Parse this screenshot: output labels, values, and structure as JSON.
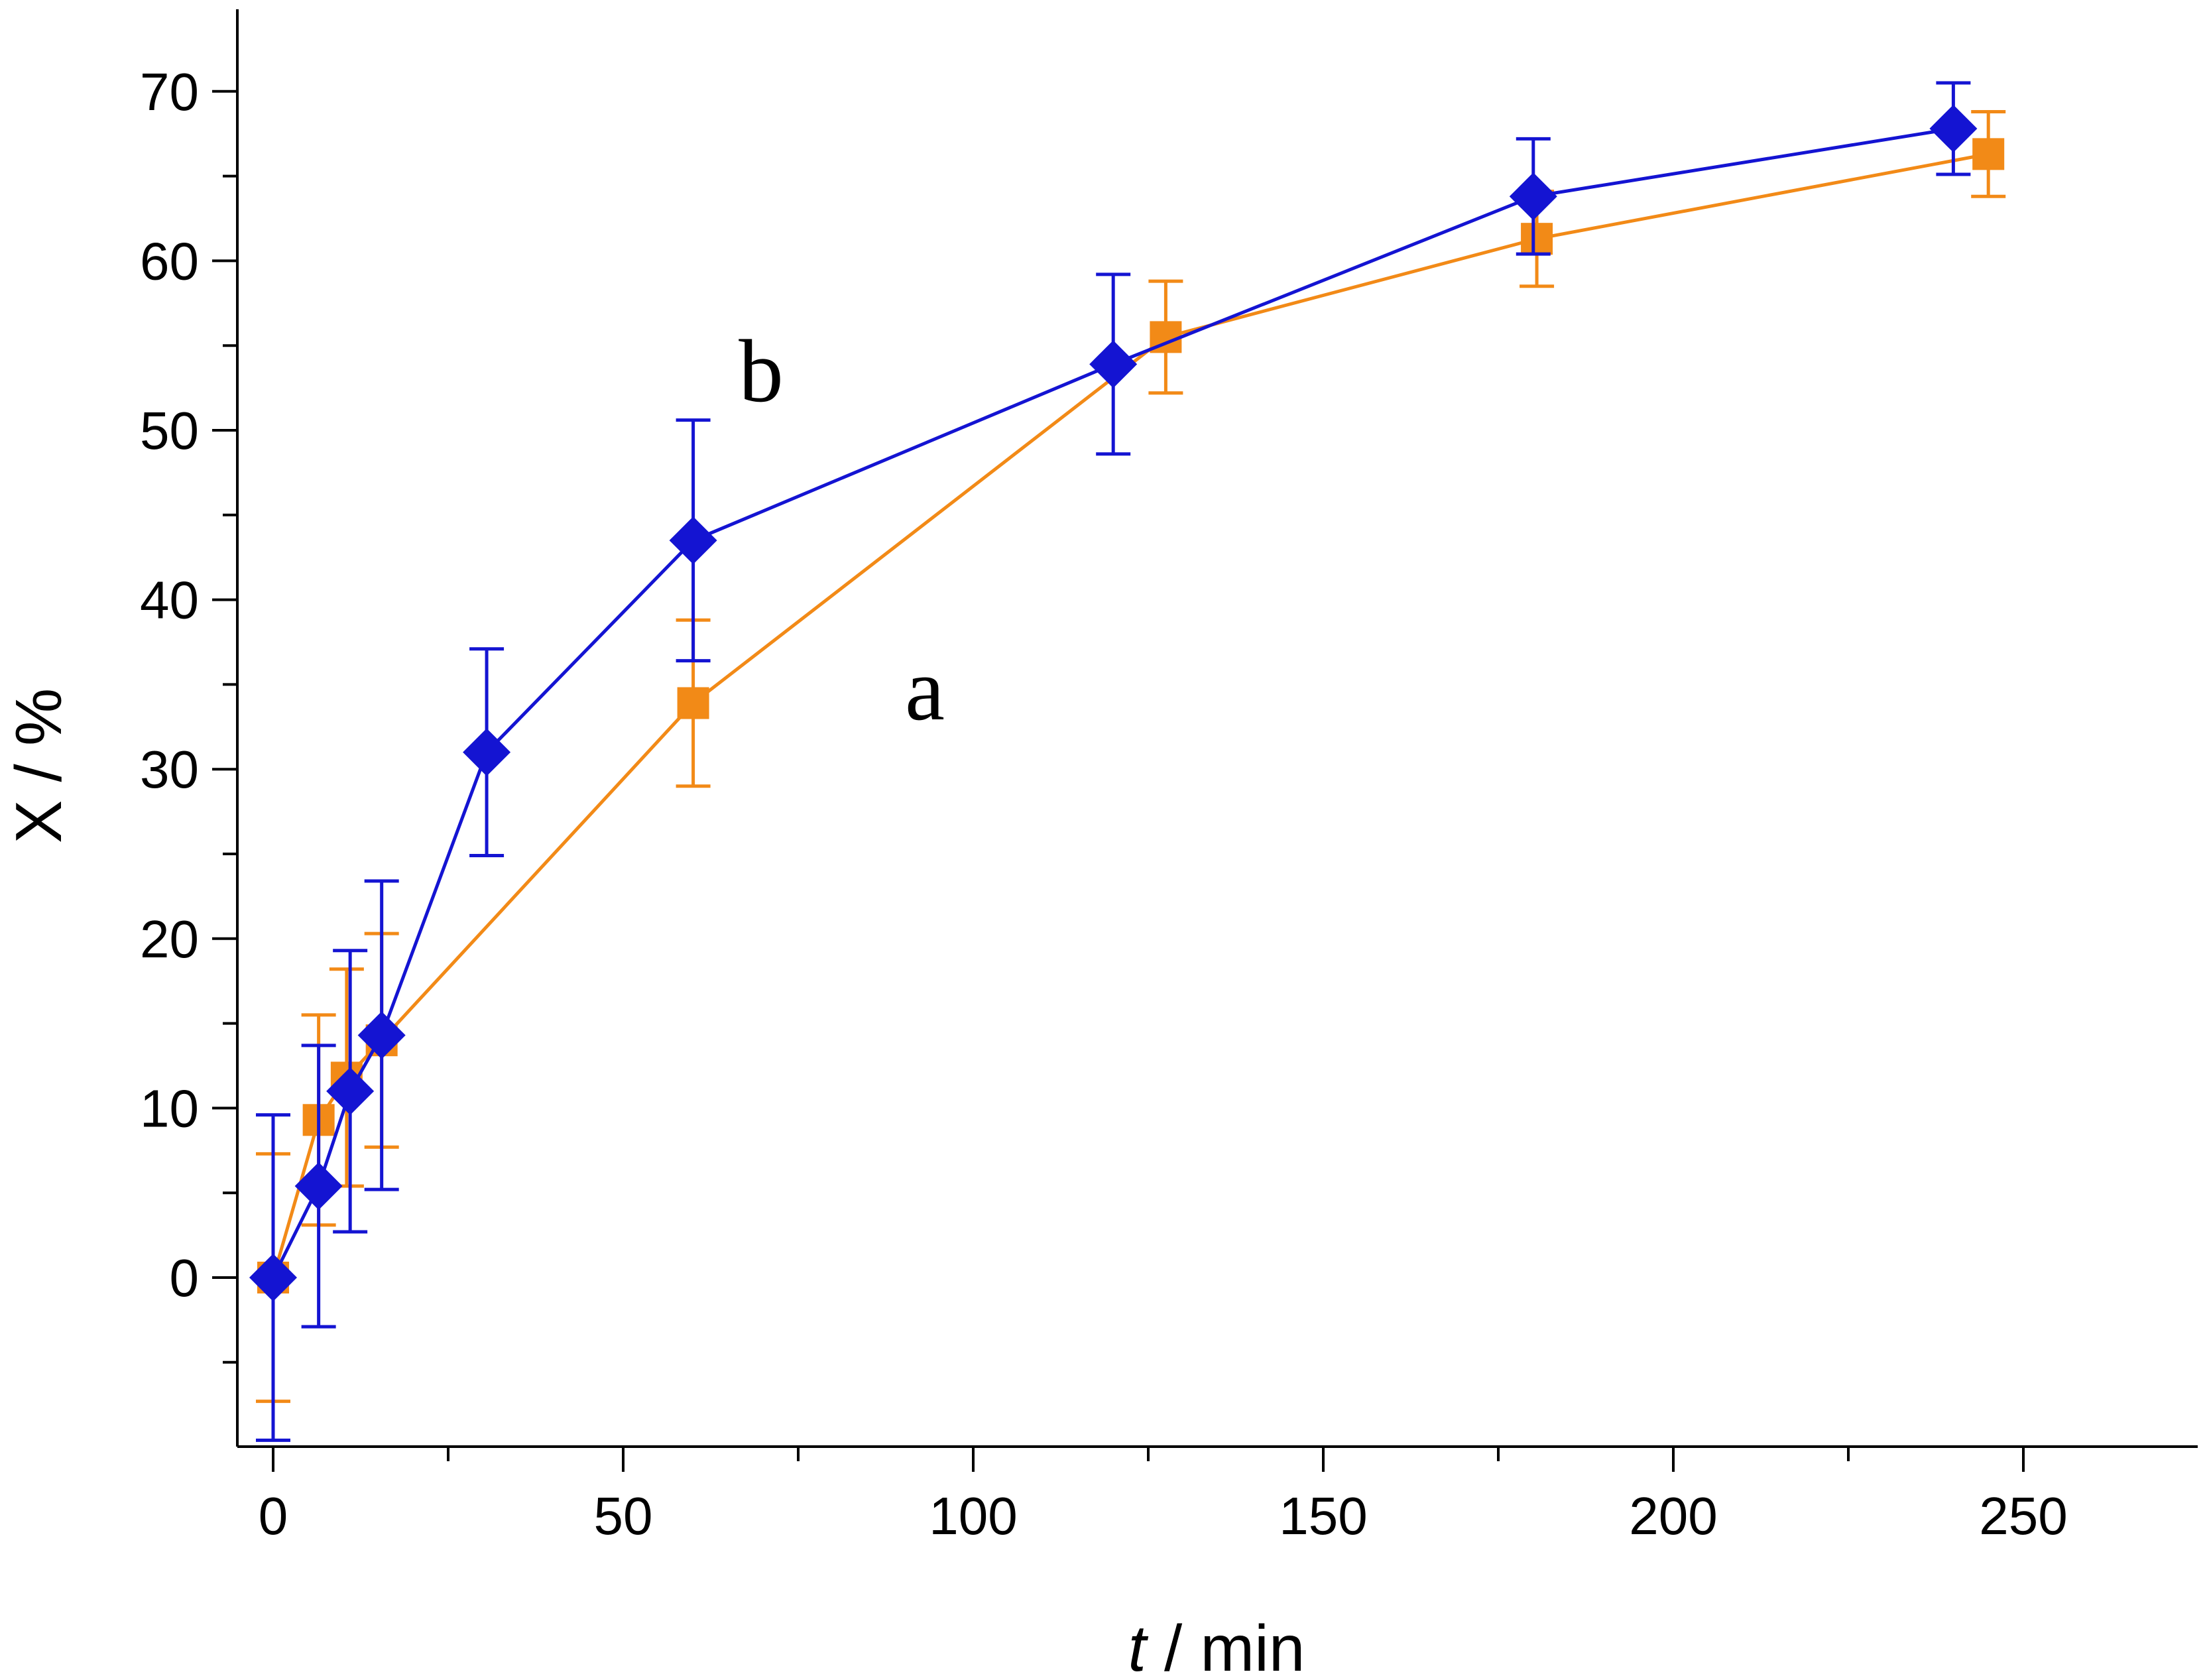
{
  "chart_data": {
    "type": "line",
    "title": "",
    "xlabel_italic": "t",
    "xlabel_rest": " / min",
    "ylabel": "X / %",
    "xlim": [
      -5,
      275
    ],
    "ylim": [
      -10,
      75
    ],
    "xticks": [
      0,
      50,
      100,
      150,
      200,
      250
    ],
    "yticks": [
      0,
      10,
      20,
      30,
      40,
      50,
      60,
      70
    ],
    "x_minor_step": 25,
    "y_minor_step": 5,
    "grid": false,
    "series": [
      {
        "name": "a",
        "color": "#f28a17",
        "marker": "square",
        "x": [
          0,
          6.5,
          10.5,
          15.5,
          60,
          127.5,
          180.5,
          245
        ],
        "y": [
          0,
          9.3,
          11.8,
          14,
          33.9,
          55.5,
          61.3,
          66.3
        ],
        "err": [
          7.3,
          6.2,
          6.4,
          6.3,
          4.9,
          3.3,
          2.8,
          2.5
        ]
      },
      {
        "name": "b",
        "color": "#1414d2",
        "marker": "diamond",
        "x": [
          0,
          6.5,
          11,
          15.5,
          30.5,
          60,
          120,
          180,
          240
        ],
        "y": [
          0,
          5.4,
          11,
          14.3,
          31,
          43.5,
          53.9,
          63.8,
          67.8
        ],
        "err": [
          9.6,
          8.3,
          8.3,
          9.1,
          6.1,
          7.1,
          5.3,
          3.4,
          2.7
        ]
      }
    ],
    "annotations": [
      {
        "text": "b",
        "series": "b"
      },
      {
        "text": "a",
        "series": "a"
      }
    ]
  }
}
